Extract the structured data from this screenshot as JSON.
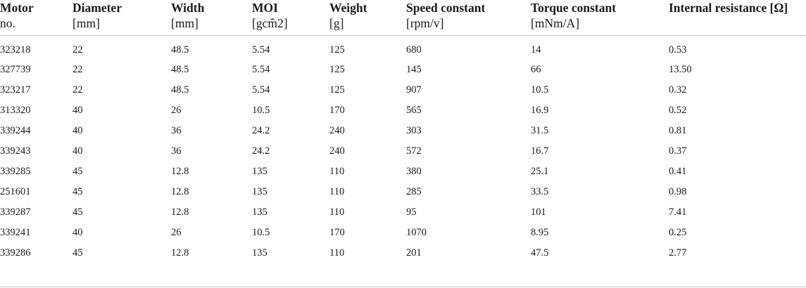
{
  "table": {
    "headers": [
      {
        "name": "Motor",
        "unit": "no."
      },
      {
        "name": "Diameter",
        "unit": "[mm]"
      },
      {
        "name": "Width",
        "unit": "[mm]"
      },
      {
        "name": "MOI",
        "unit": "[gcm̂2]"
      },
      {
        "name": "Weight",
        "unit": "[g]"
      },
      {
        "name": "Speed constant",
        "unit": "[rpm/v]"
      },
      {
        "name": "Torque constant",
        "unit": "[mNm/A]"
      },
      {
        "name": "Internal resistance [Ω]",
        "unit": ""
      }
    ],
    "rows": [
      [
        "323218",
        "22",
        "48.5",
        "5.54",
        "125",
        "680",
        "14",
        "0.53"
      ],
      [
        "327739",
        "22",
        "48.5",
        "5.54",
        "125",
        "145",
        "66",
        "13.50"
      ],
      [
        "323217",
        "22",
        "48.5",
        "5.54",
        "125",
        "907",
        "10.5",
        "0.32"
      ],
      [
        "313320",
        "40",
        "26",
        "10.5",
        "170",
        "565",
        "16.9",
        "0.52"
      ],
      [
        "339244",
        "40",
        "36",
        "24.2",
        "240",
        "303",
        "31.5",
        "0.81"
      ],
      [
        "339243",
        "40",
        "36",
        "24.2",
        "240",
        "572",
        "16.7",
        "0.37"
      ],
      [
        "339285",
        "45",
        "12.8",
        "135",
        "110",
        "380",
        "25.1",
        "0.41"
      ],
      [
        "251601",
        "45",
        "12.8",
        "135",
        "110",
        "285",
        "33.5",
        "0.98"
      ],
      [
        "339287",
        "45",
        "12.8",
        "135",
        "110",
        "95",
        "101",
        "7.41"
      ],
      [
        "339241",
        "40",
        "26",
        "10.5",
        "170",
        "1070",
        "8.95",
        "0.25"
      ],
      [
        "339286",
        "45",
        "12.8",
        "135",
        "110",
        "201",
        "47.5",
        "2.77"
      ]
    ]
  }
}
